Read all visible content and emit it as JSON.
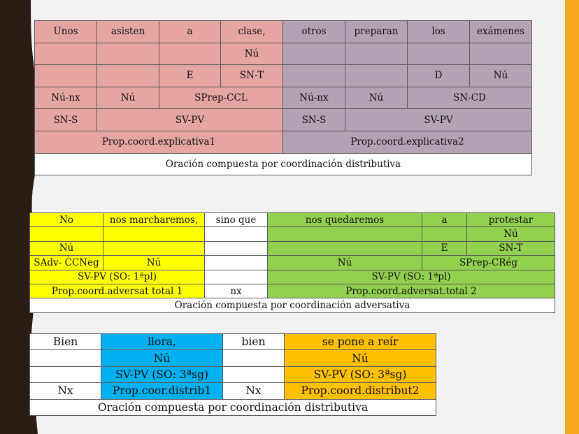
{
  "colors": {
    "left_panel": "#2b1d16",
    "right_bar": "#f5a81b",
    "pink": "#e4a5a3",
    "purple": "#b4a1b3",
    "yellow": "#ffff00",
    "green": "#92d050",
    "blue": "#00b0f0",
    "orange": "#ffc000"
  },
  "table1": {
    "row1": [
      "Unos",
      "asisten",
      "a",
      "clase,",
      "otros",
      "preparan",
      "los",
      "exámenes"
    ],
    "row2": {
      "clase": "Nú"
    },
    "row3": {
      "a": "E",
      "clase": "SN-T",
      "los": "D",
      "examenes": "Nú"
    },
    "row4": {
      "c1": "Nú-nx",
      "c2": "Nú",
      "c3": "SPrep-CCL",
      "c5": "Nú-nx",
      "c6": "Nú",
      "c7": "SN-CD"
    },
    "row5": {
      "c1": "SN-S",
      "c2": "SV-PV",
      "c5": "SN-S",
      "c6": "SV-PV"
    },
    "row6": {
      "left": "Prop.coord.explicativa1",
      "right": "Prop.coord.explicativa2"
    },
    "row7": "Oración compuesta por coordinación distributiva"
  },
  "table2": {
    "row1": [
      "No",
      "nos marcharemos,",
      "sino que",
      "nos quedaremos",
      "a",
      "protestar"
    ],
    "row2": {
      "protestar": "Nú"
    },
    "row3": {
      "no": "Nú",
      "a": "E",
      "protestar": "SN-T"
    },
    "row4": {
      "no": "SAdv- CCNeg",
      "marcharemos": "Nú",
      "quedaremos": "Nú",
      "aprotestar": "SPrep-CRég"
    },
    "row5": {
      "left": "SV-PV (SO: 1ªpl)",
      "right": "SV-PV (SO: 1ªpl)"
    },
    "row6": {
      "left": "Prop.coord.adversat total 1",
      "mid": "nx",
      "right": "Prop.coord.adversat.total 2"
    },
    "row7": "Oración compuesta por coordinación adversativa"
  },
  "table3": {
    "row1": [
      "Bien",
      "llora,",
      "bien",
      "se pone a reír"
    ],
    "row2": {
      "llora": "Nú",
      "pone": "Nú"
    },
    "row3": {
      "llora": "SV-PV (SO: 3ªsg)",
      "pone": "SV-PV (SO: 3ªsg)"
    },
    "row4": [
      "Nx",
      "Prop.coor.distrib1",
      "Nx",
      "Prop.coord.distribut2"
    ],
    "row5": "Oración compuesta por coordinación distributiva"
  }
}
